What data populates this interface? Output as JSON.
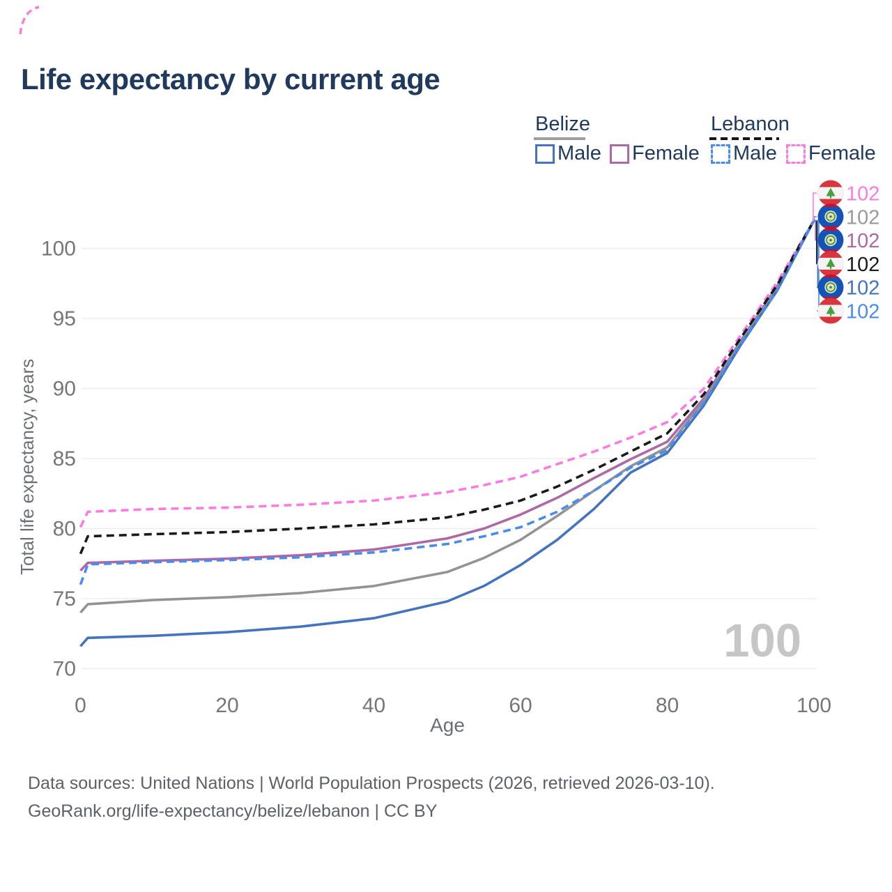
{
  "title": "Life expectancy by current age",
  "legend": {
    "groups": [
      {
        "country": "Belize",
        "line_style": "solid",
        "underline_color": "#9e9e9e",
        "items": [
          {
            "label": "Male",
            "color": "#4573bd",
            "dashed": false
          },
          {
            "label": "Female",
            "color": "#ad68a6",
            "dashed": false
          }
        ]
      },
      {
        "country": "Lebanon",
        "line_style": "dashed",
        "underline_color": "#161616",
        "items": [
          {
            "label": "Male",
            "color": "#4a8cec",
            "dashed": true
          },
          {
            "label": "Female",
            "color": "#fa7ce0",
            "dashed": true
          }
        ]
      }
    ]
  },
  "axes": {
    "x": {
      "label": "Age",
      "ticks": [
        0,
        20,
        40,
        60,
        80,
        100
      ]
    },
    "y": {
      "label": "Total life expectancy, years",
      "ticks": [
        70,
        75,
        80,
        85,
        90,
        95,
        100
      ]
    }
  },
  "watermark": "100",
  "end_labels": [
    {
      "value": "102",
      "color": "#fa7ce0",
      "flag": "lebanon",
      "series": "Lebanon Female"
    },
    {
      "value": "102",
      "color": "#9a9a9a",
      "flag": "belize",
      "series": "Belize"
    },
    {
      "value": "102",
      "color": "#ad68a6",
      "flag": "belize",
      "series": "Belize Female"
    },
    {
      "value": "102",
      "color": "#1a1a1a",
      "flag": "lebanon",
      "series": "Lebanon"
    },
    {
      "value": "102",
      "color": "#4573bd",
      "flag": "belize",
      "series": "Belize Male"
    },
    {
      "value": "102",
      "color": "#4a8cec",
      "flag": "lebanon",
      "series": "Lebanon Male"
    }
  ],
  "footer": {
    "line1": "Data sources: United Nations | World Population Prospects (2026, retrieved 2026-03-10).",
    "line2": "GeoRank.org/life-expectancy/belize/lebanon | CC BY"
  },
  "chart_data": {
    "type": "line",
    "title": "Life expectancy by current age",
    "xlabel": "Age",
    "ylabel": "Total life expectancy, years",
    "xlim": [
      0,
      100
    ],
    "ylim": [
      68.5,
      103
    ],
    "grid": "horizontal",
    "x": [
      0,
      1,
      10,
      20,
      30,
      40,
      50,
      55,
      60,
      65,
      70,
      75,
      80,
      85,
      90,
      95,
      100
    ],
    "series": [
      {
        "name": "Lebanon Female",
        "color": "#fa7ce0",
        "dashed": true,
        "values": [
          80.1,
          81.2,
          81.4,
          81.5,
          81.7,
          82.0,
          82.6,
          83.1,
          83.7,
          84.6,
          85.5,
          86.5,
          87.6,
          90.0,
          93.8,
          97.6,
          102
        ]
      },
      {
        "name": "Lebanon",
        "color": "#1a1a1a",
        "dashed": true,
        "values": [
          78.2,
          79.45,
          79.6,
          79.75,
          80.0,
          80.3,
          80.8,
          81.35,
          82.0,
          83.0,
          84.2,
          85.5,
          86.8,
          89.6,
          93.6,
          97.4,
          102
        ]
      },
      {
        "name": "Belize Female",
        "color": "#ad68a6",
        "dashed": false,
        "values": [
          77.0,
          77.55,
          77.7,
          77.85,
          78.1,
          78.5,
          79.3,
          80.0,
          81.0,
          82.2,
          83.6,
          84.95,
          86.2,
          89.3,
          93.4,
          97.3,
          102
        ]
      },
      {
        "name": "Lebanon Male",
        "color": "#4a8cec",
        "dashed": true,
        "values": [
          76.0,
          77.45,
          77.6,
          77.75,
          77.95,
          78.3,
          78.9,
          79.45,
          80.1,
          81.2,
          82.7,
          84.35,
          85.6,
          89.0,
          93.2,
          97.0,
          102
        ]
      },
      {
        "name": "Belize",
        "color": "#939393",
        "dashed": false,
        "values": [
          74.0,
          74.6,
          74.9,
          75.1,
          75.4,
          75.9,
          76.9,
          77.9,
          79.2,
          80.9,
          82.7,
          84.45,
          85.8,
          89.1,
          93.3,
          97.2,
          102
        ]
      },
      {
        "name": "Belize Male",
        "color": "#4573bd",
        "dashed": false,
        "values": [
          71.6,
          72.2,
          72.35,
          72.6,
          73.0,
          73.6,
          74.8,
          75.9,
          77.4,
          79.2,
          81.4,
          84.0,
          85.4,
          88.8,
          93.1,
          97.0,
          102
        ]
      }
    ]
  }
}
